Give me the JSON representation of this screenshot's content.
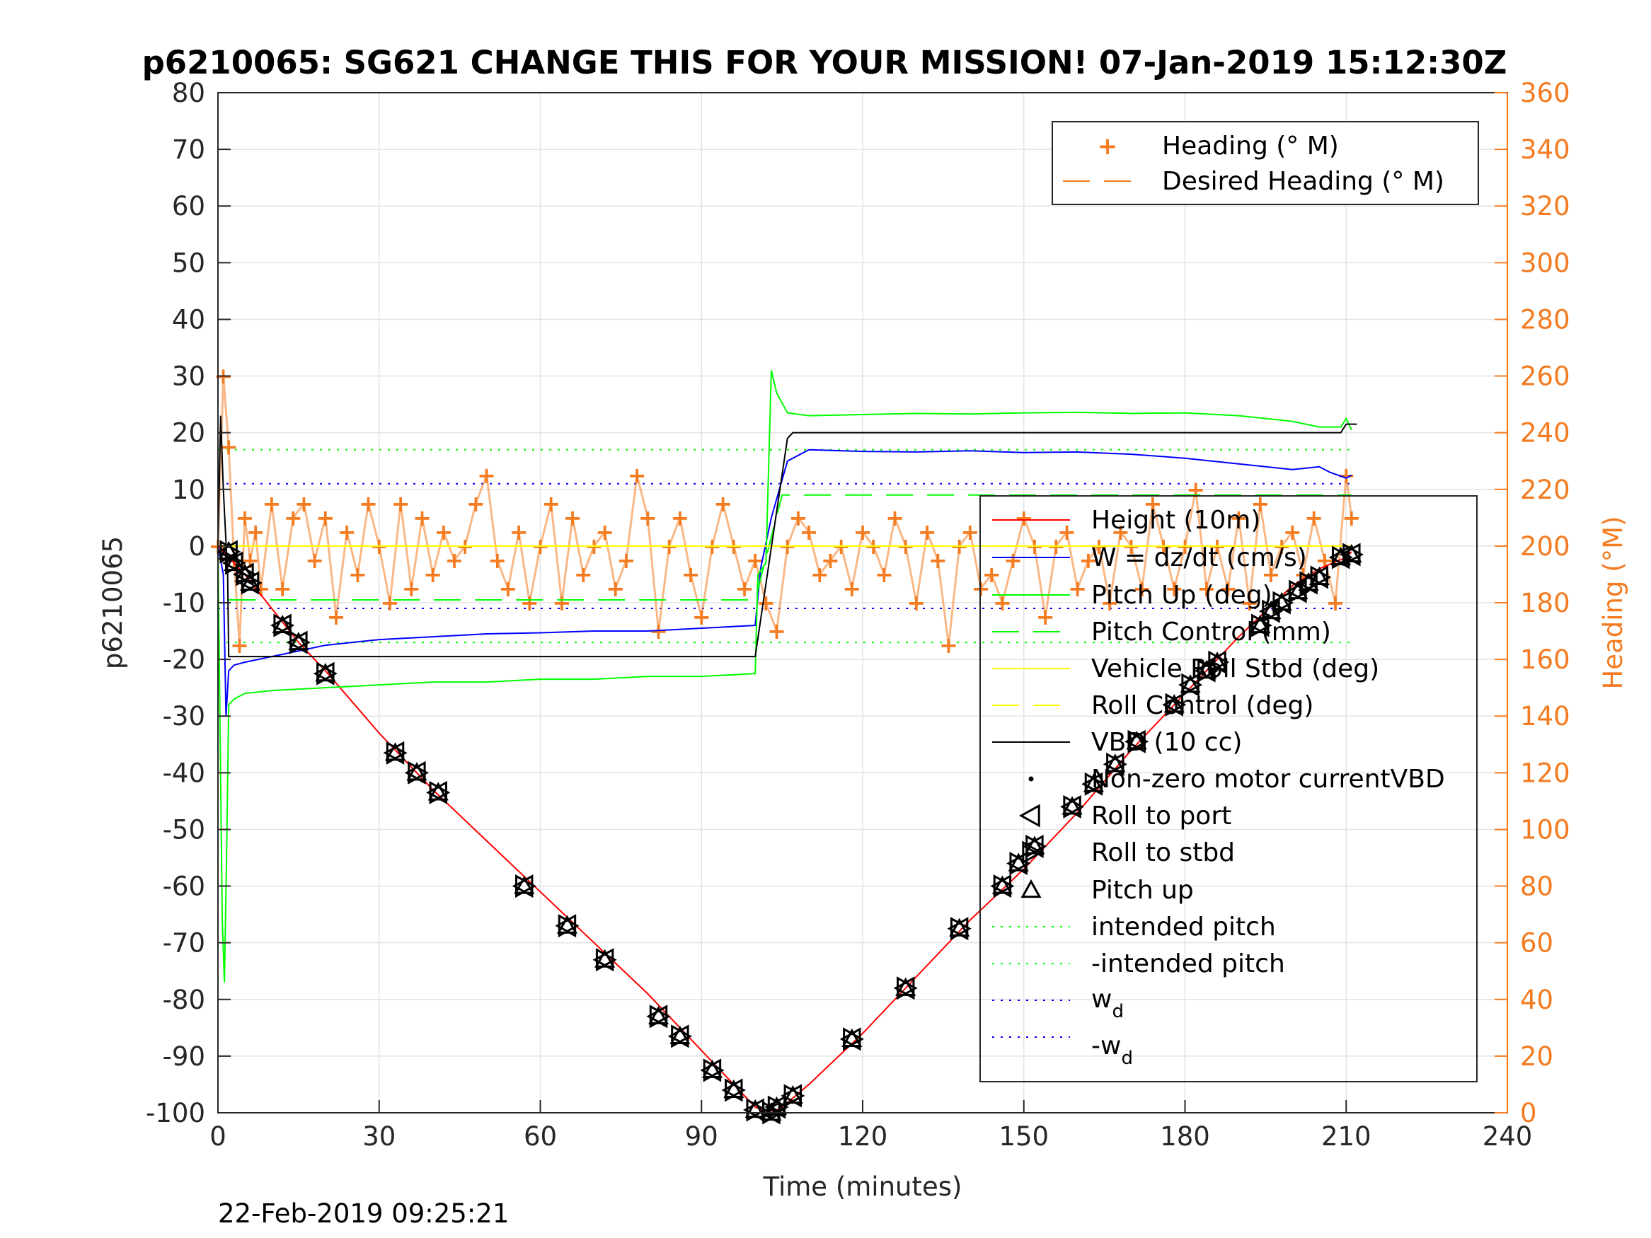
{
  "colors": {
    "height": "#ff0000",
    "w": "#0000ff",
    "pitch": "#00ff00",
    "roll": "#ffff00",
    "vbd": "#000000",
    "heading": "#f47b20",
    "grid": "#e3e3e3",
    "axis": "#262626"
  },
  "footer": {
    "timestamp": "22-Feb-2019 09:25:21"
  },
  "chart_data": {
    "type": "line",
    "title": "p6210065: SG621 CHANGE THIS FOR YOUR MISSION! 07-Jan-2019 15:12:30Z",
    "xlabel": "Time (minutes)",
    "ylabel": "p6210065",
    "y2label": "Heading (°M)",
    "xlim": [
      0,
      240
    ],
    "ylim": [
      -100,
      80
    ],
    "y2lim": [
      0,
      360
    ],
    "xticks": [
      "0",
      "30",
      "60",
      "90",
      "120",
      "150",
      "180",
      "210",
      "240"
    ],
    "yticks": [
      "-100",
      "-90",
      "-80",
      "-70",
      "-60",
      "-50",
      "-40",
      "-30",
      "-20",
      "-10",
      "0",
      "10",
      "20",
      "30",
      "40",
      "50",
      "60",
      "70",
      "80"
    ],
    "y2ticks": [
      "0",
      "20",
      "40",
      "60",
      "80",
      "100",
      "120",
      "140",
      "160",
      "180",
      "200",
      "220",
      "240",
      "260",
      "280",
      "300",
      "320",
      "340",
      "360"
    ],
    "grid": true,
    "legend_main": {
      "placement": "lower-right",
      "entries": [
        "Height (10m)",
        "W = dz/dt (cm/s)",
        "Pitch Up (deg)",
        "Pitch Control (mm)",
        "Vehicle Roll Stbd (deg)",
        "Roll Control (deg)",
        "VBD (10 cc)",
        "Non-zero motor currentVBD",
        "Roll to port",
        "Roll to stbd",
        "Pitch up",
        "intended pitch",
        "-intended pitch",
        "w",
        "-w"
      ],
      "subscript": "d"
    },
    "legend_heading": {
      "placement": "top-right",
      "entries": [
        "Heading (° M)",
        "Desired Heading (° M)"
      ]
    },
    "series": [
      {
        "name": "Height (10m)",
        "x": [
          0,
          2,
          5,
          10,
          15,
          20,
          30,
          40,
          50,
          60,
          70,
          80,
          90,
          95,
          100,
          103,
          105,
          110,
          120,
          130,
          140,
          150,
          160,
          170,
          180,
          190,
          200,
          205,
          210,
          211
        ],
        "y": [
          0,
          -2,
          -5,
          -11,
          -17,
          -22,
          -33,
          -43,
          -52,
          -61,
          -70,
          -79,
          -89,
          -94,
          -99,
          -100,
          -99,
          -95,
          -86,
          -76,
          -66,
          -57,
          -47,
          -36,
          -26,
          -16,
          -7,
          -4,
          -2,
          -1
        ]
      },
      {
        "name": "W = dz/dt (cm/s)",
        "x": [
          0,
          1,
          1.5,
          2,
          3,
          5,
          10,
          15,
          20,
          30,
          40,
          50,
          60,
          70,
          80,
          90,
          100,
          101,
          103,
          106,
          110,
          120,
          130,
          140,
          150,
          160,
          170,
          180,
          190,
          200,
          205,
          207,
          210,
          211
        ],
        "y": [
          0,
          -5,
          -30,
          -22,
          -21,
          -20.5,
          -19.5,
          -18.5,
          -17.5,
          -16.5,
          -16,
          -15.5,
          -15.3,
          -15,
          -15,
          -14.5,
          -14,
          -4,
          5,
          15,
          17,
          16.7,
          16.6,
          16.8,
          16.5,
          16.6,
          16.2,
          15.5,
          14.5,
          13.5,
          14,
          13,
          12,
          12.5
        ]
      },
      {
        "name": "Pitch Up (deg)",
        "x": [
          0,
          0.8,
          1.2,
          1.6,
          2,
          3,
          5,
          10,
          20,
          30,
          40,
          50,
          60,
          70,
          80,
          90,
          100,
          100.5,
          102,
          103,
          104,
          106,
          110,
          120,
          130,
          140,
          150,
          160,
          170,
          180,
          190,
          200,
          205,
          209,
          210,
          211
        ],
        "y": [
          0,
          -66,
          -77,
          -55,
          -28,
          -27,
          -26,
          -25.5,
          -25,
          -24.5,
          -24,
          -24,
          -23.5,
          -23.5,
          -23,
          -23,
          -22.5,
          -5,
          -3,
          31,
          27,
          23.5,
          23,
          23.2,
          23.4,
          23.3,
          23.5,
          23.6,
          23.4,
          23.5,
          23,
          22,
          21,
          21,
          22.5,
          20.5
        ]
      },
      {
        "name": "Pitch Control (mm)",
        "x": [
          2,
          100,
          105,
          211
        ],
        "y": [
          -9.5,
          -9.5,
          9,
          9
        ]
      },
      {
        "name": "Vehicle Roll Stbd (deg)",
        "x": [
          0,
          211
        ],
        "y": [
          0,
          0
        ]
      },
      {
        "name": "Roll Control (deg)",
        "x": [
          0,
          211
        ],
        "y": [
          0,
          0
        ]
      },
      {
        "name": "VBD (10 cc)",
        "x": [
          0,
          0.5,
          1,
          1.8,
          2,
          99.5,
          100,
          106,
          107,
          209,
          210,
          212
        ],
        "y": [
          0,
          23,
          10,
          -5,
          -19.5,
          -19.5,
          -19.5,
          19,
          20,
          20,
          21.5,
          21.5
        ]
      },
      {
        "name": "intended pitch",
        "x": [
          0,
          211
        ],
        "y": [
          17,
          17
        ]
      },
      {
        "name": "-intended pitch",
        "x": [
          0,
          211
        ],
        "y": [
          -17,
          -17
        ]
      },
      {
        "name": "w",
        "x": [
          0,
          211
        ],
        "y": [
          11,
          11
        ]
      },
      {
        "name": "-w",
        "x": [
          0,
          211
        ],
        "y": [
          -11,
          -11
        ]
      },
      {
        "name": "Heading (° M)",
        "axis": "right",
        "x": [
          0,
          1,
          2,
          3,
          4,
          5,
          6,
          7,
          8,
          10,
          12,
          14,
          16,
          18,
          20,
          22,
          24,
          26,
          28,
          30,
          32,
          34,
          36,
          38,
          40,
          42,
          44,
          46,
          48,
          50,
          52,
          54,
          56,
          58,
          60,
          62,
          64,
          66,
          68,
          70,
          72,
          74,
          76,
          78,
          80,
          82,
          84,
          86,
          88,
          90,
          92,
          94,
          96,
          98,
          100,
          102,
          104,
          106,
          108,
          110,
          112,
          114,
          116,
          118,
          120,
          122,
          124,
          126,
          128,
          130,
          132,
          134,
          136,
          138,
          140,
          142,
          144,
          146,
          148,
          150,
          152,
          154,
          156,
          158,
          160,
          162,
          164,
          166,
          168,
          170,
          172,
          174,
          176,
          178,
          180,
          182,
          184,
          186,
          188,
          190,
          192,
          194,
          196,
          198,
          200,
          202,
          204,
          206,
          208,
          210,
          211
        ],
        "y": [
          200,
          260,
          235,
          195,
          165,
          210,
          195,
          205,
          185,
          215,
          185,
          210,
          215,
          195,
          210,
          175,
          205,
          190,
          215,
          200,
          180,
          215,
          185,
          210,
          190,
          205,
          195,
          200,
          215,
          225,
          195,
          185,
          205,
          180,
          200,
          215,
          180,
          210,
          190,
          200,
          205,
          185,
          195,
          225,
          210,
          170,
          200,
          210,
          190,
          175,
          200,
          215,
          200,
          185,
          195,
          180,
          170,
          200,
          210,
          205,
          190,
          195,
          200,
          185,
          205,
          200,
          190,
          210,
          200,
          180,
          205,
          195,
          165,
          200,
          205,
          185,
          190,
          180,
          195,
          210,
          200,
          175,
          200,
          205,
          185,
          195,
          200,
          180,
          205,
          200,
          185,
          215,
          200,
          185,
          200,
          220,
          185,
          200,
          185,
          210,
          180,
          215,
          190,
          200,
          205,
          190,
          210,
          195,
          180,
          225,
          210
        ]
      },
      {
        "name": "Desired Heading (° M)",
        "axis": "right",
        "x": [],
        "y": []
      }
    ],
    "markers": {
      "x": [
        2,
        3,
        5,
        6,
        12,
        15,
        20,
        33,
        37,
        41,
        57,
        65,
        72,
        82,
        86,
        92,
        96,
        100,
        103,
        104,
        107,
        118,
        128,
        138,
        146,
        149,
        152,
        159,
        163,
        167,
        171,
        178,
        181,
        184,
        186,
        194,
        196,
        198,
        201,
        203,
        205,
        209,
        211
      ],
      "y": [
        -1,
        -3,
        -5,
        -6.5,
        -14,
        -17,
        -22.5,
        -36.5,
        -40,
        -43.5,
        -60,
        -67,
        -73,
        -83,
        -86.5,
        -92.5,
        -96,
        -99.5,
        -100,
        -99,
        -97,
        -87,
        -78,
        -67.5,
        -60,
        -56,
        -53,
        -46,
        -42,
        -38.5,
        -34.5,
        -28,
        -24.5,
        -22,
        -20.5,
        -14,
        -11.5,
        -10,
        -8,
        -6.5,
        -5.5,
        -2,
        -1.5
      ]
    }
  }
}
